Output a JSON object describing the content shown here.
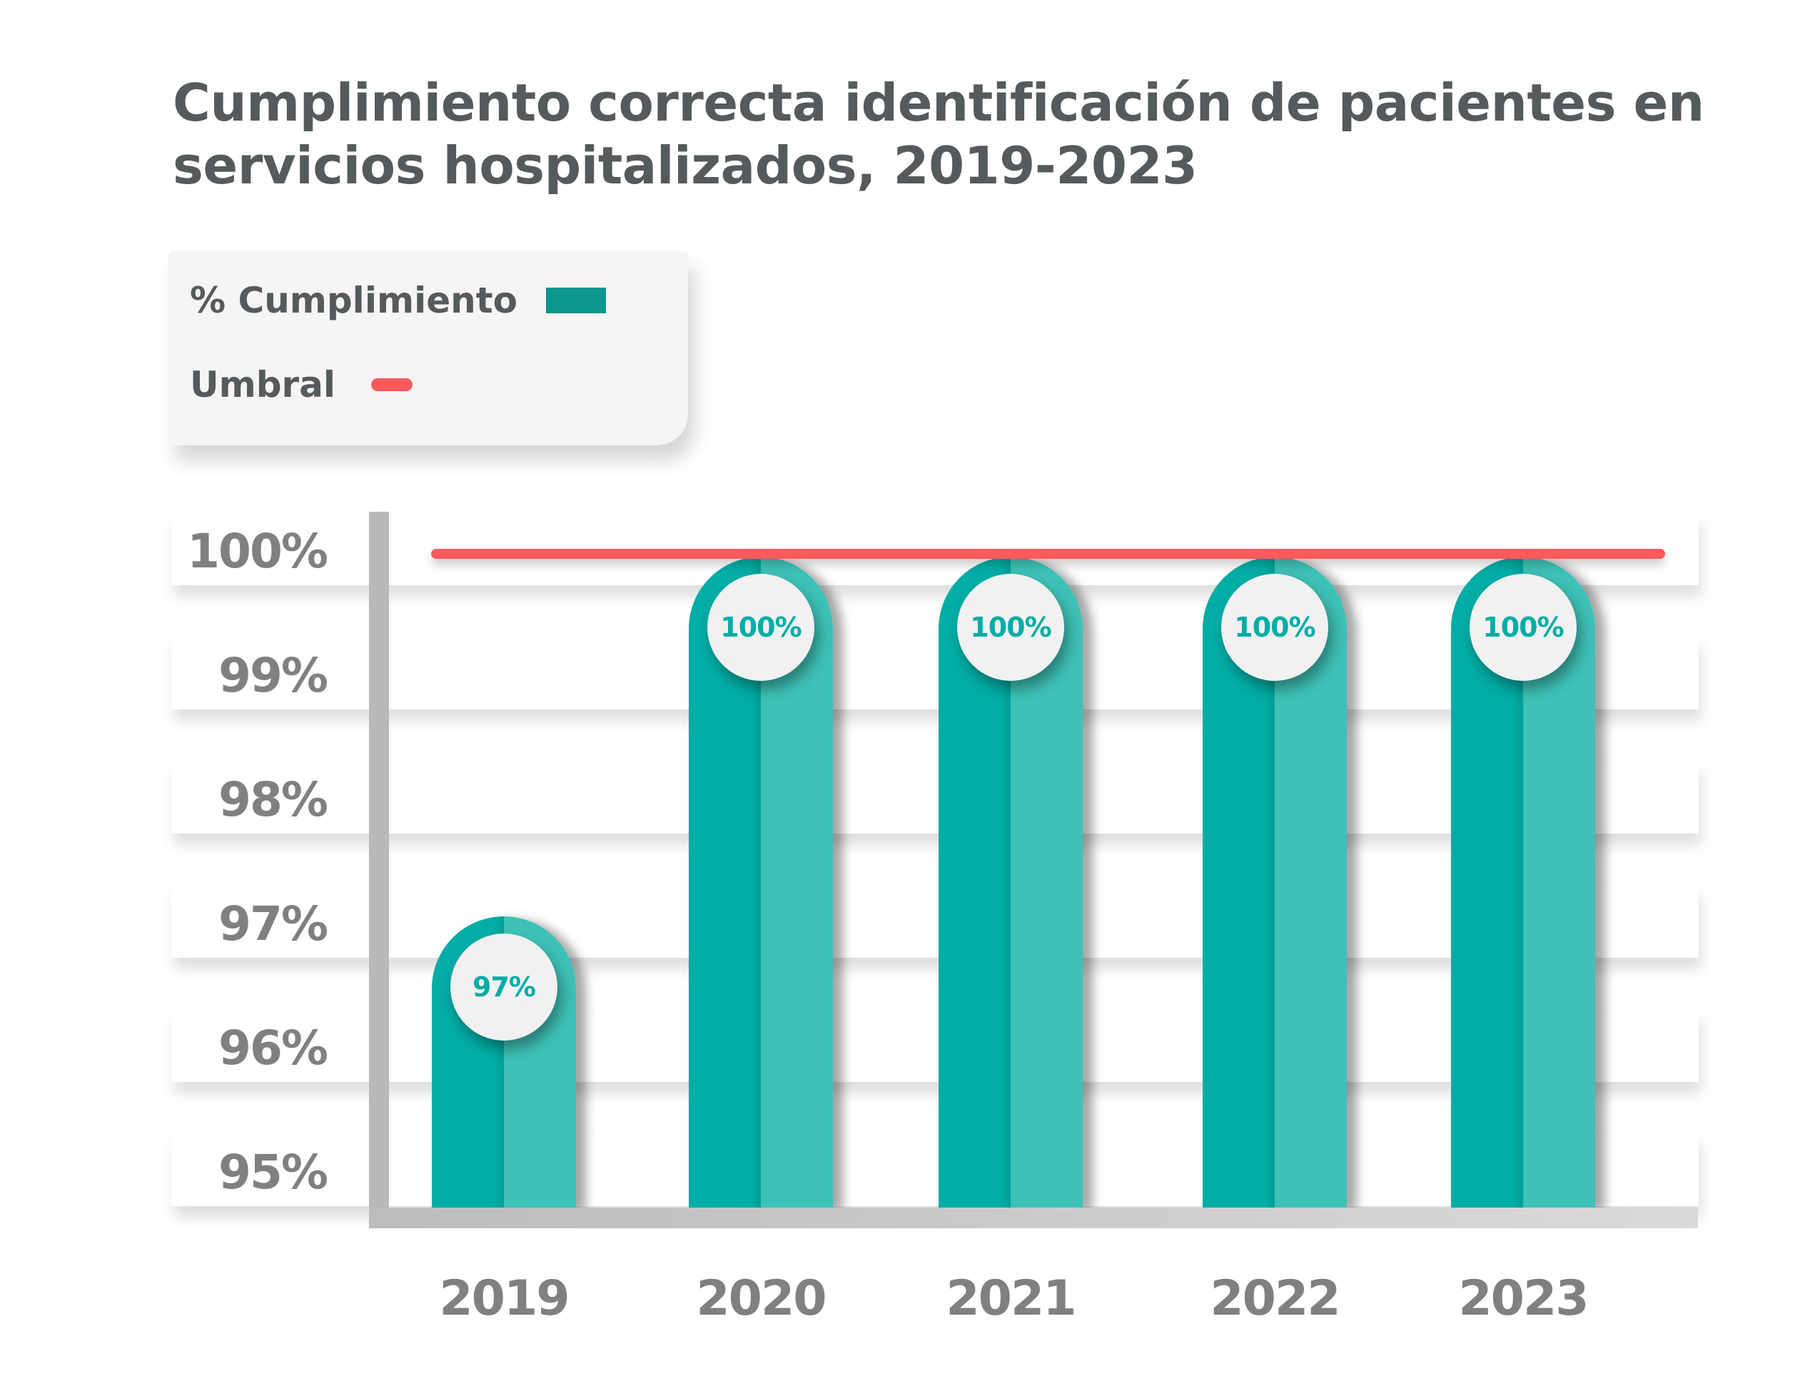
{
  "title": {
    "line1": "Cumplimiento correcta identificación de pacientes en",
    "line2": "servicios hospitalizados, 2019-2023"
  },
  "legend": {
    "items": [
      {
        "label": "% Cumplimiento",
        "type": "bar",
        "color": "#0b968e"
      },
      {
        "label": "Umbral",
        "type": "line",
        "color": "#ff5a5c"
      }
    ]
  },
  "colors": {
    "bar_left": "#02ada6",
    "bar_right": "#3ec1b6",
    "threshold": "#ff5a5c",
    "bubble_text": "#00ada6",
    "axis_text": "#808080",
    "title_text": "#555a5c"
  },
  "chart_data": {
    "type": "bar",
    "title": "Cumplimiento correcta identificación de pacientes en servicios hospitalizados, 2019-2023",
    "xlabel": "",
    "ylabel": "",
    "categories": [
      "2019",
      "2020",
      "2021",
      "2022",
      "2023"
    ],
    "series": [
      {
        "name": "% Cumplimiento",
        "values": [
          97,
          100,
          100,
          100,
          100
        ],
        "data_labels": [
          "97%",
          "100%",
          "100%",
          "100%",
          "100%"
        ]
      },
      {
        "name": "Umbral",
        "type": "line",
        "value": 100
      }
    ],
    "ylim": [
      95,
      100
    ],
    "yticks": [
      100,
      99,
      98,
      97,
      96,
      95
    ],
    "ytick_labels": [
      "100%",
      "99%",
      "98%",
      "97%",
      "96%",
      "95%"
    ],
    "grid": true,
    "legend_position": "top-left"
  }
}
